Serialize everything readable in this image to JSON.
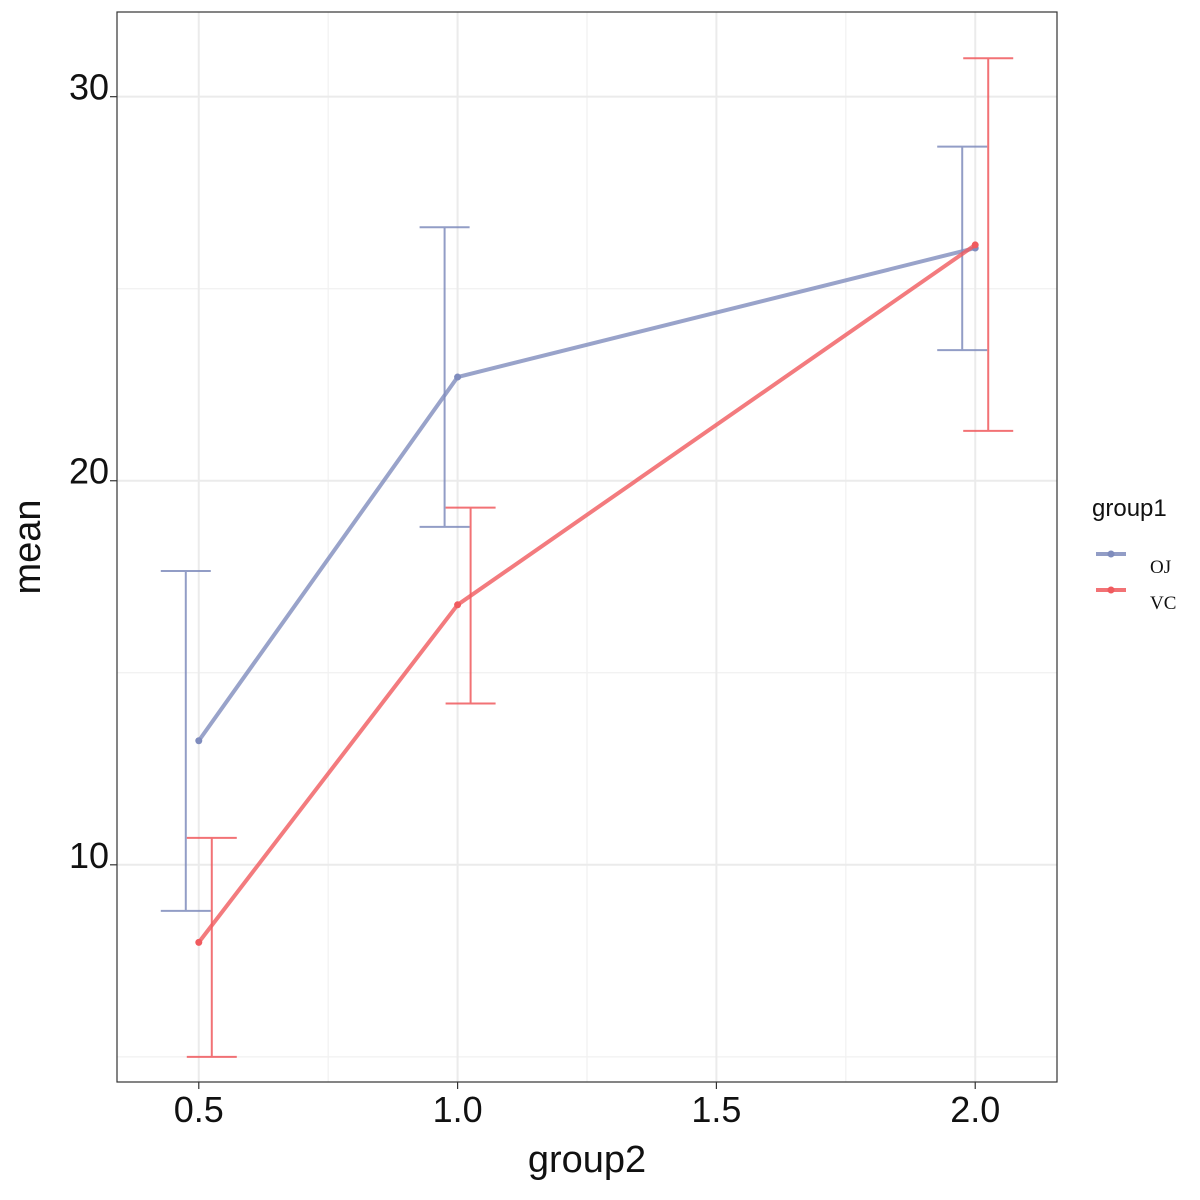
{
  "chart_data": {
    "type": "line",
    "xlabel": "group2",
    "ylabel": "mean",
    "x": [
      0.5,
      1.0,
      2.0
    ],
    "xlim": [
      0.342,
      2.158
    ],
    "ylim": [
      4.345,
      32.205
    ],
    "x_ticks": [
      0.5,
      1.0,
      1.5,
      2.0
    ],
    "x_tick_labels": [
      "0.5",
      "1.0",
      "1.5",
      "2.0"
    ],
    "y_ticks": [
      10,
      20,
      30
    ],
    "y_tick_labels": [
      "10",
      "20",
      "30"
    ],
    "grid": true,
    "legend": {
      "title": "group1",
      "placement": "right"
    },
    "series": [
      {
        "name": "OJ",
        "color": "#7f8cbd",
        "values": [
          13.23,
          22.7,
          26.06
        ],
        "lower": [
          8.8,
          18.8,
          23.4
        ],
        "upper": [
          17.65,
          26.6,
          28.7
        ]
      },
      {
        "name": "VC",
        "color": "#f05a5e",
        "values": [
          7.98,
          16.77,
          26.14
        ],
        "lower": [
          5.0,
          14.2,
          21.3
        ],
        "upper": [
          10.7,
          19.3,
          31.0
        ]
      }
    ]
  }
}
